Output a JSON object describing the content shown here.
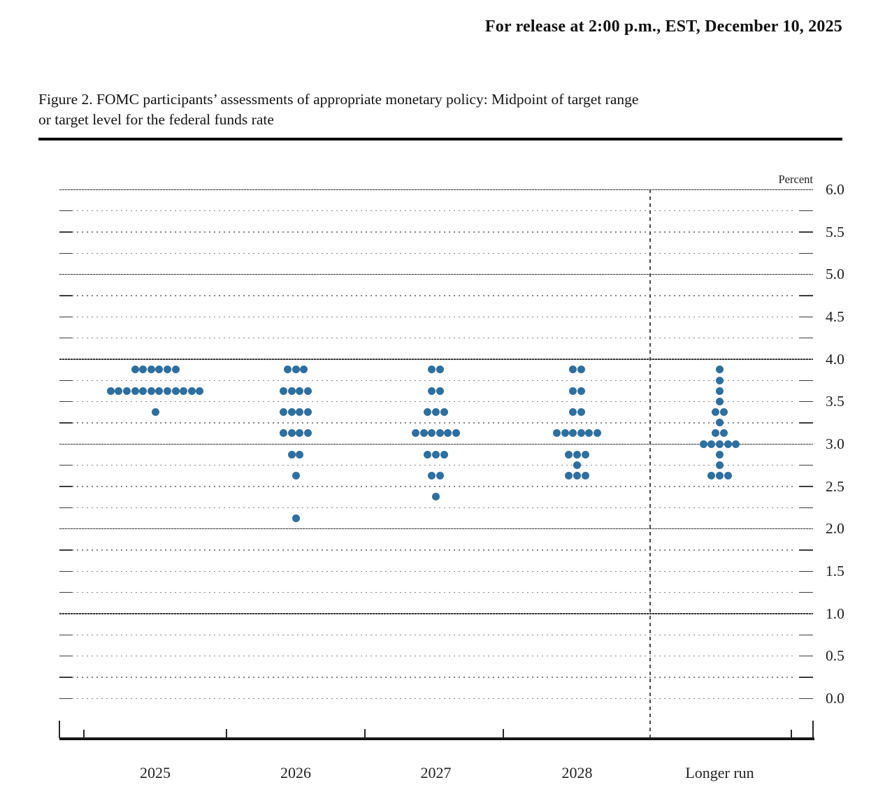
{
  "header": {
    "release_line": "For release at 2:00 p.m., EST, December 10, 2025"
  },
  "figure": {
    "title_line1": "Figure 2. FOMC participants’ assessments of appropriate monetary policy: Midpoint of target range",
    "title_line2": "or target level for the federal funds rate"
  },
  "chart_data": {
    "type": "scatter",
    "variant": "fomc-dot-plot",
    "title": "FOMC participants’ assessments of appropriate monetary policy: Midpoint of target range or target level for the federal funds rate",
    "ylabel": "Percent",
    "ylim": [
      0.0,
      6.0
    ],
    "y_grid_step": 0.25,
    "y_label_step": 0.5,
    "grid": "dotted quarter lines, dark solid integer lines, dashed divider before Longer run",
    "legend_position": "none",
    "dot_color": "#2E6F9F",
    "categories": [
      "2025",
      "2026",
      "2027",
      "2028",
      "Longer run"
    ],
    "ytick_labels": [
      "6.0",
      "5.5",
      "5.0",
      "4.5",
      "4.0",
      "3.5",
      "3.0",
      "2.5",
      "2.0",
      "1.5",
      "1.0",
      "0.5",
      "0.0"
    ],
    "series": [
      {
        "name": "2025",
        "dots": [
          {
            "value": 3.875,
            "count": 6
          },
          {
            "value": 3.625,
            "count": 12
          },
          {
            "value": 3.375,
            "count": 1
          }
        ]
      },
      {
        "name": "2026",
        "dots": [
          {
            "value": 3.875,
            "count": 3
          },
          {
            "value": 3.625,
            "count": 4
          },
          {
            "value": 3.375,
            "count": 4
          },
          {
            "value": 3.125,
            "count": 4
          },
          {
            "value": 2.875,
            "count": 2
          },
          {
            "value": 2.625,
            "count": 1
          },
          {
            "value": 2.125,
            "count": 1
          }
        ]
      },
      {
        "name": "2027",
        "dots": [
          {
            "value": 3.875,
            "count": 2
          },
          {
            "value": 3.625,
            "count": 2
          },
          {
            "value": 3.375,
            "count": 3
          },
          {
            "value": 3.125,
            "count": 6
          },
          {
            "value": 2.875,
            "count": 3
          },
          {
            "value": 2.625,
            "count": 2
          },
          {
            "value": 2.375,
            "count": 1
          }
        ]
      },
      {
        "name": "2028",
        "dots": [
          {
            "value": 3.875,
            "count": 2
          },
          {
            "value": 3.625,
            "count": 2
          },
          {
            "value": 3.375,
            "count": 2
          },
          {
            "value": 3.125,
            "count": 6
          },
          {
            "value": 2.875,
            "count": 3
          },
          {
            "value": 2.75,
            "count": 1
          },
          {
            "value": 2.625,
            "count": 3
          }
        ]
      },
      {
        "name": "Longer run",
        "dots": [
          {
            "value": 3.875,
            "count": 1
          },
          {
            "value": 3.75,
            "count": 1
          },
          {
            "value": 3.625,
            "count": 1
          },
          {
            "value": 3.5,
            "count": 1
          },
          {
            "value": 3.375,
            "count": 2
          },
          {
            "value": 3.25,
            "count": 1
          },
          {
            "value": 3.125,
            "count": 2
          },
          {
            "value": 3.0,
            "count": 5
          },
          {
            "value": 2.875,
            "count": 1
          },
          {
            "value": 2.75,
            "count": 1
          },
          {
            "value": 2.625,
            "count": 3
          }
        ]
      }
    ]
  }
}
